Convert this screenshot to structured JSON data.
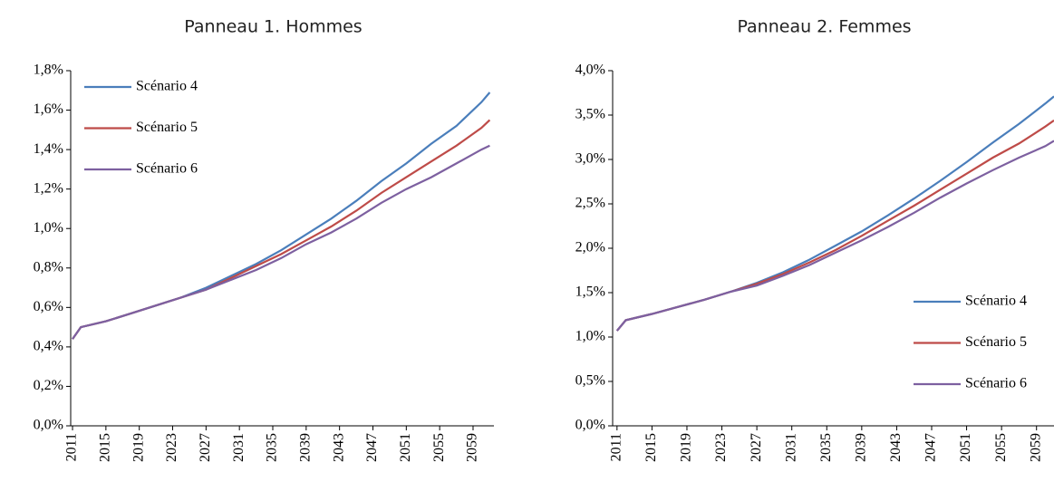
{
  "chart_data": [
    {
      "type": "line",
      "title": "Panneau 1. Hommes",
      "x": [
        2011,
        2012,
        2015,
        2018,
        2021,
        2024,
        2027,
        2030,
        2033,
        2036,
        2039,
        2042,
        2045,
        2048,
        2051,
        2054,
        2057,
        2060,
        2061
      ],
      "series": [
        {
          "name": "Scénario 4",
          "color": "#4a7ebb",
          "values": [
            0.44,
            0.5,
            0.53,
            0.57,
            0.61,
            0.65,
            0.7,
            0.76,
            0.82,
            0.89,
            0.97,
            1.05,
            1.14,
            1.24,
            1.33,
            1.43,
            1.52,
            1.64,
            1.69
          ]
        },
        {
          "name": "Scénario 5",
          "color": "#be4b48",
          "values": [
            0.44,
            0.5,
            0.53,
            0.57,
            0.61,
            0.65,
            0.69,
            0.75,
            0.81,
            0.87,
            0.94,
            1.01,
            1.09,
            1.18,
            1.26,
            1.34,
            1.42,
            1.51,
            1.55
          ]
        },
        {
          "name": "Scénario 6",
          "color": "#7d60a0",
          "values": [
            0.44,
            0.5,
            0.53,
            0.57,
            0.61,
            0.65,
            0.69,
            0.74,
            0.79,
            0.85,
            0.92,
            0.98,
            1.05,
            1.13,
            1.2,
            1.26,
            1.33,
            1.4,
            1.42
          ]
        }
      ],
      "xlim": [
        2010.78,
        2061.5
      ],
      "xticks": [
        2011,
        2015,
        2019,
        2023,
        2027,
        2031,
        2035,
        2039,
        2043,
        2047,
        2051,
        2055,
        2059
      ],
      "ylim": [
        0,
        1.8
      ],
      "yticks": [
        {
          "value": 0,
          "label": "0,0%"
        },
        {
          "value": 0.2,
          "label": "0,2%"
        },
        {
          "value": 0.4,
          "label": "0,4%"
        },
        {
          "value": 0.6,
          "label": "0,6%"
        },
        {
          "value": 0.8,
          "label": "0,8%"
        },
        {
          "value": 1.0,
          "label": "1,0%"
        },
        {
          "value": 1.2,
          "label": "1,2%"
        },
        {
          "value": 1.4,
          "label": "1,4%"
        },
        {
          "value": 1.6,
          "label": "1,6%"
        },
        {
          "value": 1.8,
          "label": "1,8%"
        }
      ],
      "legend": "upper left",
      "grid": false
    },
    {
      "type": "line",
      "title": "Panneau 2. Femmes",
      "x": [
        2011,
        2012,
        2015,
        2018,
        2021,
        2024,
        2027,
        2030,
        2033,
        2036,
        2039,
        2042,
        2045,
        2048,
        2051,
        2054,
        2057,
        2060,
        2061
      ],
      "series": [
        {
          "name": "Scénario 4",
          "color": "#4a7ebb",
          "values": [
            1.07,
            1.19,
            1.26,
            1.34,
            1.42,
            1.51,
            1.61,
            1.73,
            1.87,
            2.03,
            2.19,
            2.37,
            2.56,
            2.76,
            2.97,
            3.19,
            3.4,
            3.63,
            3.71
          ]
        },
        {
          "name": "Scénario 5",
          "color": "#be4b48",
          "values": [
            1.07,
            1.19,
            1.26,
            1.34,
            1.42,
            1.51,
            1.6,
            1.71,
            1.84,
            1.98,
            2.14,
            2.31,
            2.48,
            2.66,
            2.84,
            3.02,
            3.18,
            3.37,
            3.44
          ]
        },
        {
          "name": "Scénario 6",
          "color": "#7d60a0",
          "values": [
            1.07,
            1.19,
            1.26,
            1.34,
            1.42,
            1.51,
            1.58,
            1.69,
            1.81,
            1.95,
            2.09,
            2.24,
            2.4,
            2.57,
            2.73,
            2.88,
            3.02,
            3.15,
            3.21
          ]
        }
      ],
      "xlim": [
        2010.5,
        2061
      ],
      "xticks": [
        2011,
        2015,
        2019,
        2023,
        2027,
        2031,
        2035,
        2039,
        2043,
        2047,
        2051,
        2055,
        2059
      ],
      "ylim": [
        0,
        4.0
      ],
      "yticks": [
        {
          "value": 0,
          "label": "0,0%"
        },
        {
          "value": 0.5,
          "label": "0,5%"
        },
        {
          "value": 1.0,
          "label": "1,0%"
        },
        {
          "value": 1.5,
          "label": "1,5%"
        },
        {
          "value": 2.0,
          "label": "2,0%"
        },
        {
          "value": 2.5,
          "label": "2,5%"
        },
        {
          "value": 3.0,
          "label": "3,0%"
        },
        {
          "value": 3.5,
          "label": "3,5%"
        },
        {
          "value": 4.0,
          "label": "4,0%"
        }
      ],
      "legend": "lower right",
      "grid": false
    }
  ]
}
